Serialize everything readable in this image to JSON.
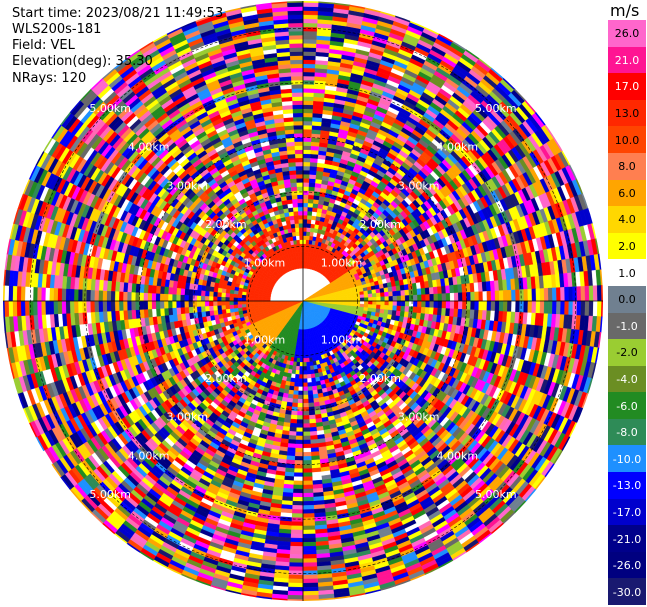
{
  "header": {
    "start_time": "Start time: 2023/08/21 11:49:53",
    "instrument": "WLS200s-181",
    "field": "Field: VEL",
    "elevation": "Elevation(deg): 35.30",
    "nrays": "NRays: 120"
  },
  "colorbar": {
    "unit": "m/s",
    "ticks": [
      "26.0",
      "21.0",
      "17.0",
      "13.0",
      "10.0",
      "8.0",
      "6.0",
      "4.0",
      "2.0",
      "1.0",
      "0.0",
      "-1.0",
      "-2.0",
      "-4.0",
      "-6.0",
      "-8.0",
      "-10.0",
      "-13.0",
      "-17.0",
      "-21.0",
      "-26.0",
      "-30.0"
    ],
    "colors": [
      "#ff66cc",
      "#ff1493",
      "#ff0000",
      "#ff2800",
      "#ff4500",
      "#ff7f50",
      "#ffa500",
      "#ffd700",
      "#ffff00",
      "#ffffff",
      "#708090",
      "#696969",
      "#9acd32",
      "#6b8e23",
      "#228b22",
      "#2e8b57",
      "#1e90ff",
      "#0000ff",
      "#0000cd",
      "#00008b",
      "#000080",
      "#191970"
    ]
  },
  "chart_data": {
    "type": "ppi",
    "field": "VEL",
    "nrays": 120,
    "elevation_deg": 35.3,
    "range_rings_km": [
      1.0,
      2.0,
      3.0,
      4.0,
      5.0
    ],
    "range_ring_labels": [
      "1.00km",
      "2.00km",
      "3.00km",
      "4.00km",
      "5.00km"
    ],
    "velocity_sectors": [
      {
        "azimuth_deg": [
          270,
          60
        ],
        "sign": "positive",
        "approx_m_s": 17
      },
      {
        "azimuth_deg": [
          60,
          100
        ],
        "sign": "positive",
        "approx_m_s": 3
      },
      {
        "azimuth_deg": [
          90,
          190
        ],
        "sign": "negative",
        "approx_m_s": -17
      },
      {
        "azimuth_deg": [
          190,
          270
        ],
        "sign": "mixed",
        "approx_m_s": 5
      }
    ],
    "far_field": "noise"
  }
}
